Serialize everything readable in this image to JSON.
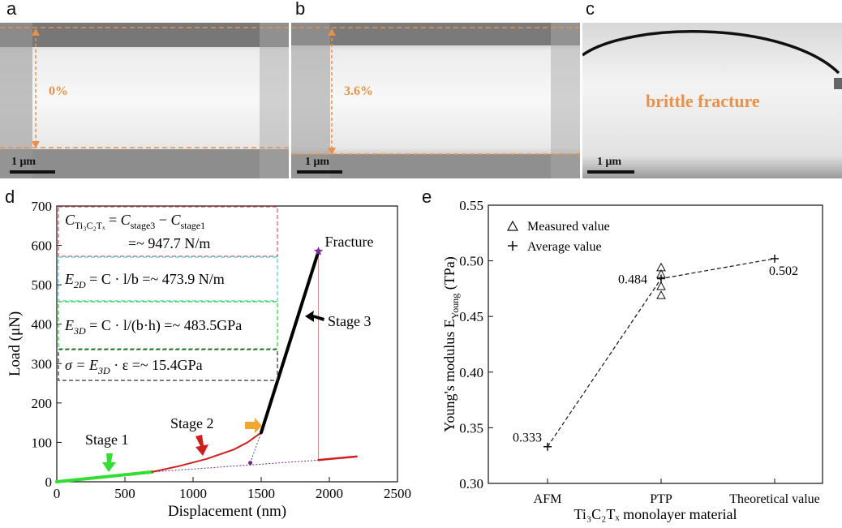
{
  "panels": {
    "a": {
      "letter": "a",
      "strain": "0%",
      "scale": "1 μm"
    },
    "b": {
      "letter": "b",
      "strain": "3.6%",
      "scale": "1 μm"
    },
    "c": {
      "letter": "c",
      "label": "brittle fracture",
      "scale": "1 μm"
    },
    "d": {
      "letter": "d"
    },
    "e": {
      "letter": "e"
    }
  },
  "colors": {
    "accent_orange": "#e8914a",
    "stage1": "#33dd33",
    "stage2": "#cc1f1f",
    "stage3": "#000000",
    "fracture_marker": "#7b2fa0",
    "arrow_orange": "#f2a830"
  },
  "chart_data": [
    {
      "id": "d",
      "type": "line",
      "xlabel": "Displacement (nm)",
      "ylabel": "Load (μN)",
      "xlim": [
        0,
        2500
      ],
      "ylim": [
        0,
        700
      ],
      "xticks": [
        0,
        500,
        1000,
        1500,
        2000,
        2500
      ],
      "yticks": [
        0,
        100,
        200,
        300,
        400,
        500,
        600,
        700
      ],
      "series": [
        {
          "name": "Stage 1",
          "color": "#33dd33",
          "x": [
            0,
            700
          ],
          "y": [
            0,
            25
          ]
        },
        {
          "name": "Stage 2",
          "color": "#cc1f1f",
          "x": [
            700,
            900,
            1100,
            1300,
            1400,
            1500
          ],
          "y": [
            25,
            40,
            58,
            82,
            100,
            125
          ]
        },
        {
          "name": "Stage 3",
          "color": "#000000",
          "x": [
            1500,
            1920
          ],
          "y": [
            125,
            585
          ]
        },
        {
          "name": "",
          "color": "#cc1f1f",
          "x": [
            1920,
            2000,
            2200
          ],
          "y": [
            55,
            58,
            64
          ]
        }
      ],
      "fracture_point": {
        "x": 1920,
        "y": 585,
        "label": "Fracture"
      },
      "annotations": {
        "stage1": "Stage 1",
        "stage2": "Stage 2",
        "stage3": "Stage 3",
        "fracture": "Fracture"
      },
      "equations": [
        {
          "lhs_main": "C",
          "lhs_sub": "Ti₃C₂Tₓ",
          "rhs": "= C",
          "rhs_sub1": "stage3",
          "mid": " − C",
          "rhs_sub2": "stage1",
          "line2": "=~ 947.7 N/m"
        },
        {
          "text_a": "E",
          "sub": "2D",
          "text_b": " = C · l/b =~ 473.9 N/m"
        },
        {
          "text_a": "E",
          "sub": "3D",
          "text_b": " = C · l/(b·h) =~ 483.5GPa"
        },
        {
          "text_a": "σ = E",
          "sub": "3D",
          "text_b": " · ε =~ 15.4GPa"
        }
      ]
    },
    {
      "id": "e",
      "type": "scatter",
      "xlabel": "Ti₃C₂Tₓ monolayer material",
      "ylabel": "Young's modulus E",
      "ylabel_sub": "Young",
      "ylabel_unit": " (TPa)",
      "categories": [
        "AFM",
        "PTP",
        "Theoretical value"
      ],
      "ylim": [
        0.3,
        0.55
      ],
      "yticks": [
        "0.30",
        "0.35",
        "0.40",
        "0.45",
        "0.50",
        "0.55"
      ],
      "legend": [
        "Measured value",
        "Average value"
      ],
      "measured_ptp": [
        0.494,
        0.488,
        0.477,
        0.469
      ],
      "average": [
        0.333,
        0.484,
        0.502
      ],
      "average_labels": [
        "0.333",
        "0.484",
        "0.502"
      ]
    }
  ]
}
